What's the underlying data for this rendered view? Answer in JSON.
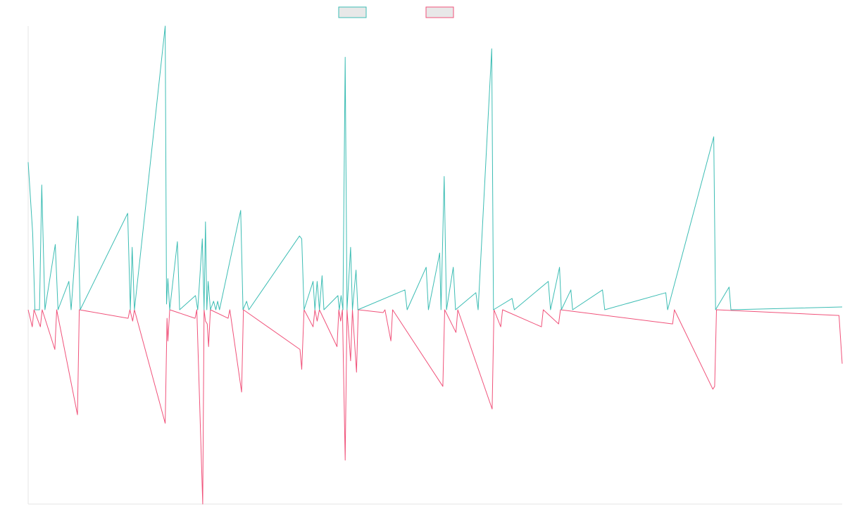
{
  "chart_data": {
    "type": "line",
    "title": "",
    "xlabel": "",
    "ylabel": "",
    "legend_position": "top-center",
    "grid": false,
    "x_range": [
      0,
      180
    ],
    "ylim": [
      -100,
      100
    ],
    "colors": {
      "series_1": "#3dbdb4",
      "series_2": "#f0527a",
      "swatch_fill": "#e8e8e8",
      "axis": "#e6e6e6"
    },
    "series": [
      {
        "points": [
          [
            0,
            52
          ],
          [
            1,
            27
          ],
          [
            1.5,
            0
          ],
          [
            2,
            0
          ],
          [
            2.5,
            0
          ],
          [
            3,
            44
          ],
          [
            3.7,
            0
          ],
          [
            6,
            23
          ],
          [
            6.6,
            0
          ],
          [
            9,
            10
          ],
          [
            9.5,
            0
          ],
          [
            11,
            33
          ],
          [
            11.5,
            0
          ],
          [
            22,
            34
          ],
          [
            22.6,
            0
          ],
          [
            23,
            22
          ],
          [
            23.5,
            0
          ],
          [
            30.3,
            119
          ],
          [
            30.6,
            2
          ],
          [
            30.9,
            11
          ],
          [
            31.3,
            0
          ],
          [
            33,
            24
          ],
          [
            33.5,
            0
          ],
          [
            37,
            5
          ],
          [
            37.5,
            0
          ],
          [
            38.5,
            25
          ],
          [
            38.9,
            0
          ],
          [
            39.2,
            31
          ],
          [
            39.5,
            0
          ],
          [
            39.8,
            10
          ],
          [
            40.3,
            0
          ],
          [
            41,
            3
          ],
          [
            41.5,
            0
          ],
          [
            41.9,
            3
          ],
          [
            42.3,
            0
          ],
          [
            47,
            35
          ],
          [
            47.5,
            0
          ],
          [
            48.3,
            3
          ],
          [
            48.8,
            0
          ],
          [
            60,
            26
          ],
          [
            60.5,
            25
          ],
          [
            61,
            0
          ],
          [
            63,
            10
          ],
          [
            63.4,
            0
          ],
          [
            63.9,
            10
          ],
          [
            64.4,
            0
          ],
          [
            65,
            12
          ],
          [
            65.4,
            0
          ],
          [
            68.5,
            5
          ],
          [
            68.8,
            0
          ],
          [
            69.2,
            5
          ],
          [
            69.6,
            0
          ],
          [
            70.1,
            89
          ],
          [
            70.5,
            0
          ],
          [
            71.3,
            22
          ],
          [
            71.7,
            0
          ],
          [
            72.5,
            14
          ],
          [
            72.9,
            0
          ],
          [
            83.3,
            7
          ],
          [
            83.8,
            0
          ],
          [
            88,
            15
          ],
          [
            88.5,
            0
          ],
          [
            91,
            20
          ],
          [
            91.3,
            0
          ],
          [
            92,
            47
          ],
          [
            92.5,
            0
          ],
          [
            94,
            15
          ],
          [
            94.5,
            0
          ],
          [
            99,
            6
          ],
          [
            99.5,
            0
          ],
          [
            102.5,
            92
          ],
          [
            102.9,
            0
          ],
          [
            107,
            4
          ],
          [
            107.5,
            0
          ],
          [
            115,
            10
          ],
          [
            115.5,
            0
          ],
          [
            117.5,
            15
          ],
          [
            117.9,
            0
          ],
          [
            120,
            7
          ],
          [
            120.4,
            0
          ],
          [
            127,
            7
          ],
          [
            127.5,
            0
          ],
          [
            141,
            6
          ],
          [
            141.4,
            0
          ],
          [
            151.6,
            61
          ],
          [
            152,
            0
          ],
          [
            155,
            8
          ],
          [
            155.4,
            0
          ],
          [
            185,
            1
          ]
        ]
      },
      {
        "points": [
          [
            0,
            0
          ],
          [
            0.9,
            -6
          ],
          [
            1.3,
            0
          ],
          [
            2.7,
            -6
          ],
          [
            3.1,
            0
          ],
          [
            5.9,
            -14
          ],
          [
            6.3,
            0
          ],
          [
            10.9,
            -37
          ],
          [
            11.3,
            0
          ],
          [
            22.1,
            -3
          ],
          [
            22.5,
            0
          ],
          [
            23.1,
            -4
          ],
          [
            23.5,
            0
          ],
          [
            30.3,
            -40
          ],
          [
            30.7,
            -3
          ],
          [
            30.9,
            -11
          ],
          [
            31.3,
            0
          ],
          [
            36.9,
            -3
          ],
          [
            37.3,
            0
          ],
          [
            38.6,
            -80
          ],
          [
            38.9,
            0
          ],
          [
            39.2,
            -4
          ],
          [
            39.6,
            -5
          ],
          [
            39.9,
            -13
          ],
          [
            40.3,
            0
          ],
          [
            44.2,
            -3
          ],
          [
            44.6,
            0
          ],
          [
            47.2,
            -29
          ],
          [
            47.6,
            0
          ],
          [
            60.1,
            -14
          ],
          [
            60.5,
            -21
          ],
          [
            61,
            0
          ],
          [
            63,
            -6
          ],
          [
            63.4,
            0
          ],
          [
            63.9,
            -4
          ],
          [
            64.4,
            0
          ],
          [
            68.3,
            -13
          ],
          [
            68.7,
            0
          ],
          [
            69.1,
            -4
          ],
          [
            69.5,
            0
          ],
          [
            70.1,
            -53
          ],
          [
            70.5,
            0
          ],
          [
            71.3,
            -18
          ],
          [
            71.7,
            0
          ],
          [
            72.6,
            -22
          ],
          [
            73,
            0
          ],
          [
            78.5,
            -1
          ],
          [
            78.9,
            0
          ],
          [
            80.2,
            -11
          ],
          [
            80.6,
            0
          ],
          [
            91.7,
            -27
          ],
          [
            92.1,
            0
          ],
          [
            94.6,
            -8
          ],
          [
            95,
            0
          ],
          [
            102.6,
            -35
          ],
          [
            103,
            0
          ],
          [
            104.5,
            -6
          ],
          [
            104.9,
            0
          ],
          [
            113.5,
            -6
          ],
          [
            113.9,
            0
          ],
          [
            117.3,
            -5
          ],
          [
            117.7,
            0
          ],
          [
            142.5,
            -5
          ],
          [
            142.9,
            0
          ],
          [
            151.4,
            -28
          ],
          [
            151.8,
            -27
          ],
          [
            152.2,
            0
          ],
          [
            179.3,
            -2
          ],
          [
            180,
            -19
          ]
        ]
      }
    ]
  }
}
